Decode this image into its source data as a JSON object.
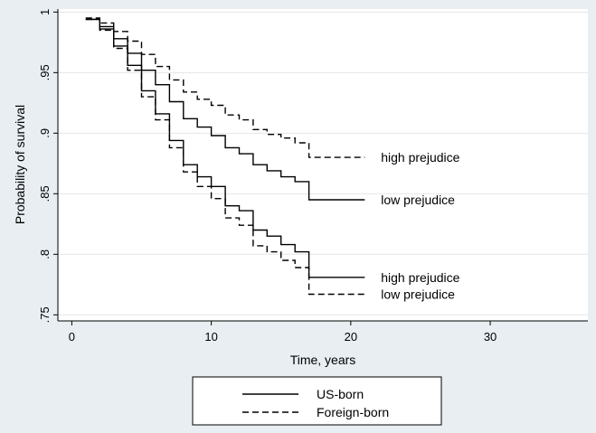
{
  "chart_data": {
    "type": "line",
    "xlabel": "Time, years",
    "ylabel": "Probability of survival",
    "xlim": [
      -1,
      37
    ],
    "ylim": [
      0.745,
      1.0025
    ],
    "xticks": [
      0,
      10,
      20,
      30
    ],
    "xtick_labels": [
      "0",
      "10",
      "20",
      "30"
    ],
    "yticks": [
      1.0,
      0.95,
      0.9,
      0.85,
      0.8,
      0.75
    ],
    "ytick_labels": [
      "1",
      ".95",
      ".9",
      ".85",
      ".8",
      ".75"
    ],
    "grid": "horizontal",
    "legend_position": "bottom",
    "legend": [
      {
        "label": "US-born",
        "style": "solid"
      },
      {
        "label": "Foreign-born",
        "style": "dashed"
      }
    ],
    "series": [
      {
        "style": "solid",
        "end_label": "low prejudice",
        "x": [
          1,
          2,
          3,
          4,
          5,
          6,
          7,
          8,
          9,
          10,
          11,
          12,
          13,
          14,
          15,
          16,
          17,
          21
        ],
        "y": [
          0.994,
          0.988,
          0.978,
          0.966,
          0.952,
          0.94,
          0.926,
          0.912,
          0.905,
          0.898,
          0.888,
          0.883,
          0.874,
          0.869,
          0.864,
          0.86,
          0.845,
          0.845
        ]
      },
      {
        "style": "solid",
        "end_label": "high prejudice",
        "x": [
          1,
          2,
          3,
          4,
          5,
          6,
          7,
          8,
          9,
          10,
          11,
          12,
          13,
          14,
          15,
          16,
          17,
          21
        ],
        "y": [
          0.994,
          0.986,
          0.972,
          0.956,
          0.935,
          0.916,
          0.894,
          0.874,
          0.864,
          0.856,
          0.84,
          0.836,
          0.82,
          0.815,
          0.808,
          0.802,
          0.781,
          0.781
        ]
      },
      {
        "style": "dashed",
        "end_label": "high prejudice",
        "x": [
          1,
          2,
          3,
          4,
          5,
          6,
          7,
          8,
          9,
          10,
          11,
          12,
          13,
          14,
          15,
          16,
          17,
          21
        ],
        "y": [
          0.995,
          0.991,
          0.984,
          0.976,
          0.965,
          0.955,
          0.944,
          0.934,
          0.928,
          0.923,
          0.915,
          0.911,
          0.903,
          0.899,
          0.896,
          0.892,
          0.88,
          0.88
        ]
      },
      {
        "style": "dashed",
        "end_label": "low prejudice",
        "x": [
          1,
          2,
          3,
          4,
          5,
          6,
          7,
          8,
          9,
          10,
          11,
          12,
          13,
          14,
          15,
          16,
          17,
          21
        ],
        "y": [
          0.994,
          0.985,
          0.97,
          0.952,
          0.93,
          0.911,
          0.888,
          0.868,
          0.856,
          0.846,
          0.83,
          0.824,
          0.807,
          0.802,
          0.795,
          0.789,
          0.767,
          0.767
        ]
      }
    ]
  }
}
